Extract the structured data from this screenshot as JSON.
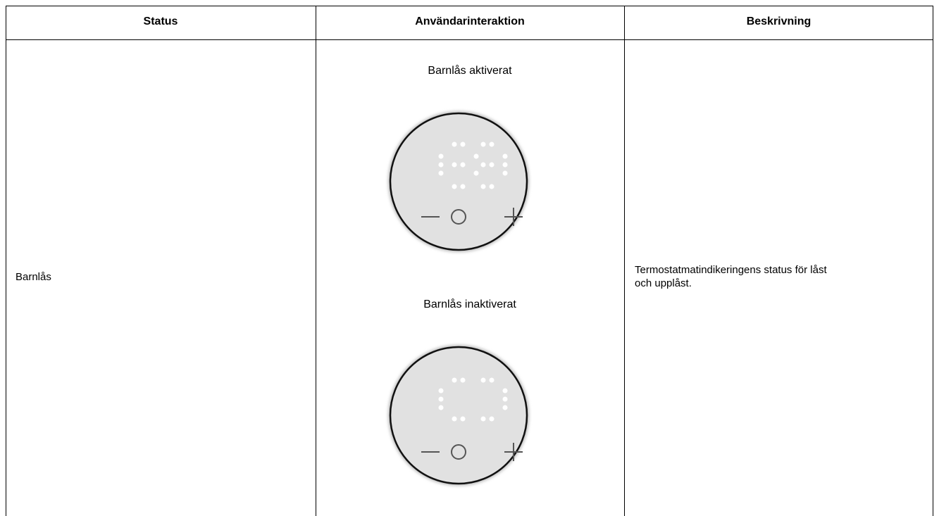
{
  "table": {
    "headers": [
      "Status",
      "Användarinteraktion",
      "Beskrivning"
    ],
    "rows": [
      [
        "Barnlås",
        {
          "captions": [
            "Barnlås aktiverat",
            "Barnlås inaktiverat"
          ]
        },
        "Termostatmatindikeringens status för låst och upplåst."
      ]
    ]
  }
}
